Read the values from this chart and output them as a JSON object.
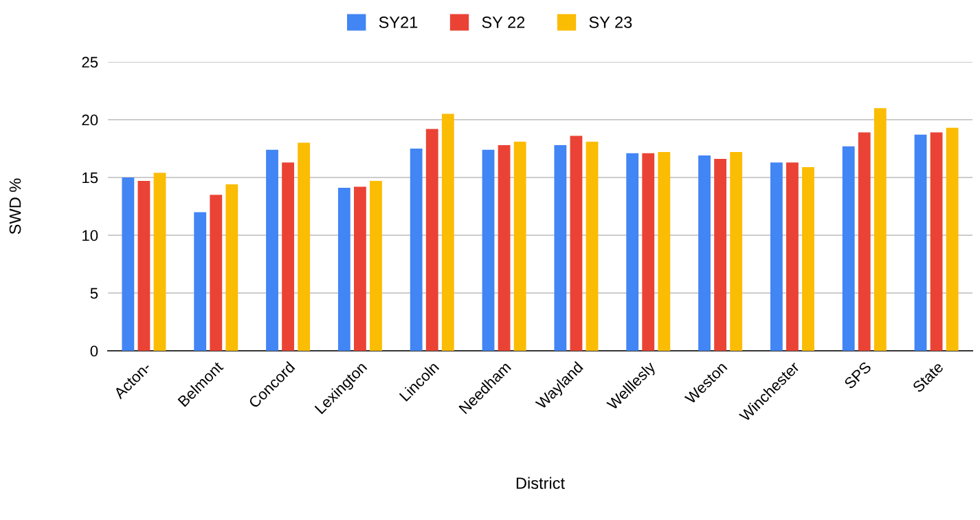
{
  "chart_data": {
    "type": "bar",
    "xlabel": "District",
    "ylabel": "SWD %",
    "categories": [
      "Acton-",
      "Belmont",
      "Concord",
      "Lexington",
      "Lincoln",
      "Needham",
      "Wayland",
      "Welllesly",
      "Weston",
      "Winchester",
      "SPS",
      "State"
    ],
    "series": [
      {
        "name": "SY21",
        "color": "#4285f4",
        "values": [
          15.0,
          12.0,
          17.4,
          14.1,
          17.5,
          17.4,
          17.8,
          17.1,
          16.9,
          16.3,
          17.7,
          18.7
        ]
      },
      {
        "name": "SY 22",
        "color": "#ea4335",
        "values": [
          14.7,
          13.5,
          16.3,
          14.2,
          19.2,
          17.8,
          18.6,
          17.1,
          16.6,
          16.3,
          18.9,
          18.9
        ]
      },
      {
        "name": "SY 23",
        "color": "#fbbc04",
        "values": [
          15.4,
          14.4,
          18.0,
          14.7,
          20.5,
          18.1,
          18.1,
          17.2,
          17.2,
          15.9,
          21.0,
          19.3
        ]
      }
    ],
    "ylim": [
      0,
      25
    ],
    "yticks": [
      0,
      5,
      10,
      15,
      20,
      25
    ],
    "grid": "y",
    "legend": "top"
  }
}
